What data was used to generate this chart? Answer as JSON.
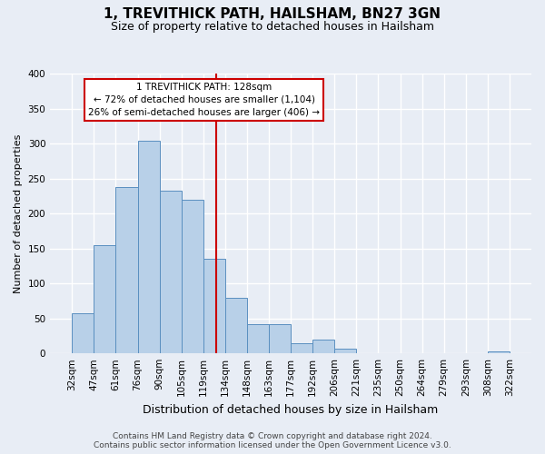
{
  "title": "1, TREVITHICK PATH, HAILSHAM, BN27 3GN",
  "subtitle": "Size of property relative to detached houses in Hailsham",
  "xlabel": "Distribution of detached houses by size in Hailsham",
  "ylabel": "Number of detached properties",
  "bar_labels": [
    "32sqm",
    "47sqm",
    "61sqm",
    "76sqm",
    "90sqm",
    "105sqm",
    "119sqm",
    "134sqm",
    "148sqm",
    "163sqm",
    "177sqm",
    "192sqm",
    "206sqm",
    "221sqm",
    "235sqm",
    "250sqm",
    "264sqm",
    "279sqm",
    "293sqm",
    "308sqm",
    "322sqm"
  ],
  "bar_values": [
    57,
    155,
    238,
    305,
    233,
    220,
    135,
    79,
    42,
    42,
    14,
    20,
    7,
    0,
    0,
    0,
    0,
    0,
    0,
    3
  ],
  "bar_color": "#b8d0e8",
  "bar_edge_color": "#5a8fc0",
  "vline_color": "#cc0000",
  "vline_x": 6.6,
  "ylim": [
    0,
    400
  ],
  "yticks": [
    0,
    50,
    100,
    150,
    200,
    250,
    300,
    350,
    400
  ],
  "annotation_line0": "1 TREVITHICK PATH: 128sqm",
  "annotation_line1": "← 72% of detached houses are smaller (1,104)",
  "annotation_line2": "26% of semi-detached houses are larger (406) →",
  "annotation_box_color": "#ffffff",
  "annotation_box_edge": "#cc0000",
  "footer1": "Contains HM Land Registry data © Crown copyright and database right 2024.",
  "footer2": "Contains public sector information licensed under the Open Government Licence v3.0.",
  "background_color": "#e8edf5",
  "plot_bg_color": "#e8edf5",
  "grid_color": "#ffffff",
  "title_fontsize": 11,
  "subtitle_fontsize": 9,
  "xlabel_fontsize": 9,
  "ylabel_fontsize": 8,
  "tick_fontsize": 7.5,
  "footer_fontsize": 6.5
}
